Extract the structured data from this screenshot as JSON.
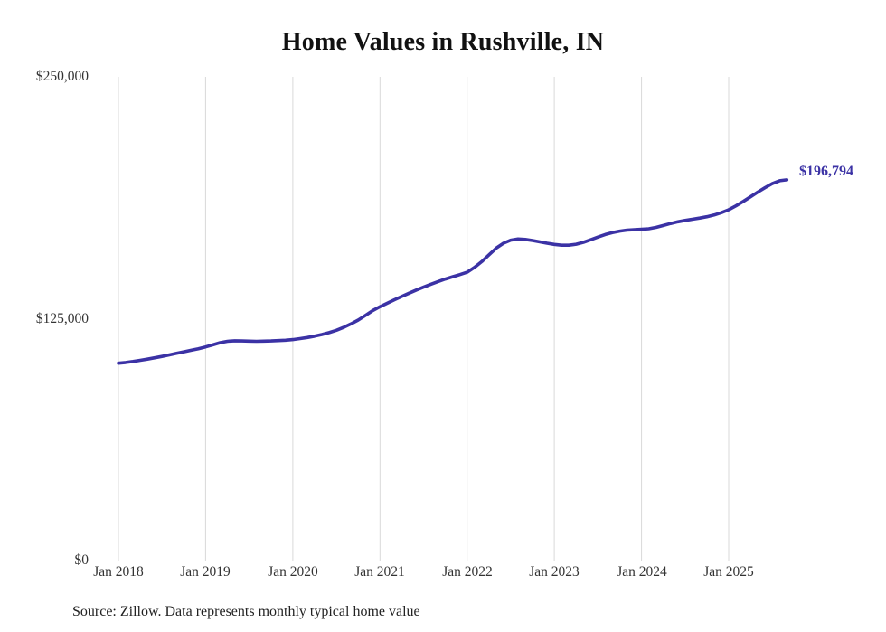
{
  "chart_data": {
    "type": "line",
    "title": "Home Values in Rushville, IN",
    "xlabel": "",
    "ylabel": "",
    "ylim": [
      0,
      250000
    ],
    "grid": "vertical",
    "grid_color": "#d9d9d9",
    "y_tick_labels": [
      "$250,000",
      "$125,000",
      "$0"
    ],
    "x_tick_labels": [
      "Jan 2018",
      "Jan 2019",
      "Jan 2020",
      "Jan 2021",
      "Jan 2022",
      "Jan 2023",
      "Jan 2024",
      "Jan 2025"
    ],
    "x_start": "2018-01",
    "x_end": "2025-09",
    "annotation": "$196,794",
    "last_value": 196794,
    "source": "Source: Zillow. Data represents monthly typical home value",
    "series": [
      {
        "name": "Typical home value",
        "color": "#3b32a5",
        "values": [
          102000,
          102400,
          102900,
          103500,
          104100,
          104800,
          105500,
          106300,
          107100,
          107900,
          108700,
          109500,
          110400,
          111500,
          112600,
          113300,
          113600,
          113500,
          113400,
          113300,
          113400,
          113500,
          113700,
          113900,
          114200,
          114700,
          115300,
          116000,
          116800,
          117800,
          119000,
          120500,
          122300,
          124300,
          126700,
          129200,
          131200,
          133000,
          134800,
          136500,
          138200,
          139800,
          141300,
          142800,
          144200,
          145500,
          146700,
          147800,
          149000,
          151500,
          154500,
          158000,
          161500,
          164000,
          165600,
          166200,
          166000,
          165400,
          164700,
          164000,
          163400,
          163000,
          163000,
          163500,
          164500,
          165800,
          167200,
          168500,
          169500,
          170300,
          170800,
          171000,
          171200,
          171500,
          172200,
          173200,
          174200,
          175100,
          175800,
          176400,
          177000,
          177700,
          178600,
          179800,
          181300,
          183300,
          185600,
          188000,
          190400,
          192700,
          194800,
          196300,
          196794
        ]
      }
    ]
  }
}
